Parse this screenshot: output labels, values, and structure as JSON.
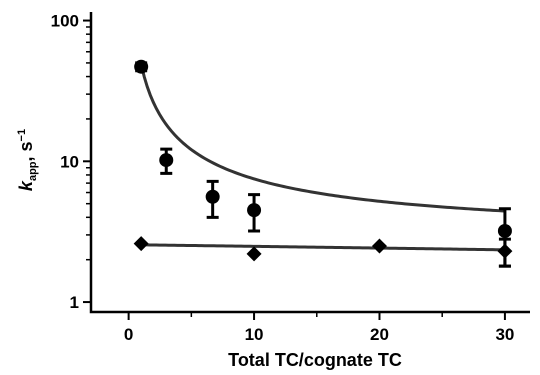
{
  "chart_data": {
    "type": "scatter",
    "xlabel": "Total TC/cognate TC",
    "ylabel": {
      "main": "k",
      "sub": "app",
      "unit": ", s",
      "sup": "−1"
    },
    "xlim": [
      -3,
      32
    ],
    "ylim": [
      0.85,
      115
    ],
    "yscale": "log",
    "x_ticks": [
      0,
      10,
      20,
      30
    ],
    "y_ticks": [
      1,
      10,
      100
    ],
    "x_tick_labels": [
      "0",
      "10",
      "20",
      "30"
    ],
    "y_tick_labels": [
      "1",
      "10",
      "100"
    ],
    "grid": false,
    "legend": "none",
    "series": [
      {
        "marker": "circle",
        "x": [
          1,
          3,
          6.7,
          10,
          30
        ],
        "y": [
          47,
          10.2,
          5.6,
          4.5,
          3.2
        ],
        "err": [
          3,
          2,
          1.6,
          1.3,
          1.4
        ],
        "fit": {
          "form": "hyperbolic",
          "a": 46,
          "b": 2.9,
          "x_start": 1,
          "x_end": 30
        }
      },
      {
        "marker": "diamond",
        "x": [
          1,
          10,
          20,
          30
        ],
        "y": [
          2.6,
          2.2,
          2.5,
          2.3
        ],
        "err": [
          0,
          0,
          0,
          0.5
        ],
        "fit": {
          "form": "linear",
          "y_start": 2.55,
          "y_end": 2.35,
          "x_start": 1,
          "x_end": 30
        }
      }
    ],
    "colors": {
      "axis": "#000000",
      "markers": "#000000",
      "fit": "#333333"
    }
  }
}
